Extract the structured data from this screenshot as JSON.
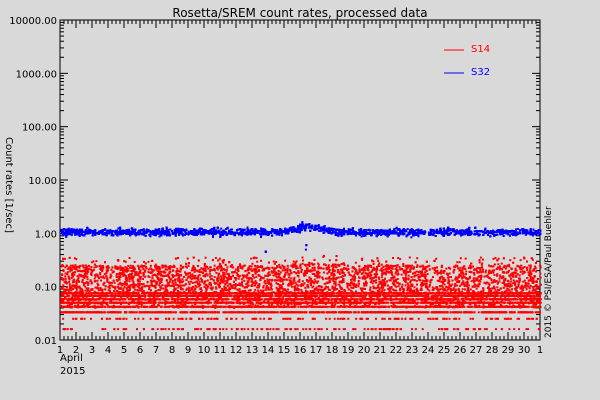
{
  "chart_data": {
    "type": "scatter",
    "title": "Rosetta/SREM count rates, processed data",
    "ylabel": "Count rates [1/sec]",
    "xlabel_month": "April",
    "xlabel_year": "2015",
    "y_scale": "log",
    "ylim": [
      0.01,
      10000
    ],
    "y_ticks": [
      {
        "value": 0.01,
        "label": "0.01"
      },
      {
        "value": 0.1,
        "label": "0.10"
      },
      {
        "value": 1,
        "label": "1.00"
      },
      {
        "value": 10,
        "label": "10.00"
      },
      {
        "value": 100,
        "label": "100.00"
      },
      {
        "value": 1000,
        "label": "1000.00"
      },
      {
        "value": 10000,
        "label": "10000.00"
      }
    ],
    "xlim": [
      1,
      31
    ],
    "x_ticks": [
      "1",
      "2",
      "3",
      "4",
      "5",
      "6",
      "7",
      "8",
      "9",
      "10",
      "11",
      "12",
      "13",
      "14",
      "15",
      "16",
      "17",
      "18",
      "19",
      "20",
      "21",
      "22",
      "23",
      "24",
      "25",
      "26",
      "27",
      "28",
      "29",
      "30",
      "1"
    ],
    "grid": false,
    "legend_position": "top-right",
    "series": [
      {
        "name": "S14",
        "color": "#ff0000",
        "typical_range": [
          0.04,
          0.25
        ],
        "discrete_levels": [
          0.016,
          0.025,
          0.033,
          0.042,
          0.05,
          0.058,
          0.067,
          0.075
        ],
        "notes": "noisy band near 0.1 count/s with quantized low levels"
      },
      {
        "name": "S32",
        "color": "#0000ff",
        "typical_range": [
          0.7,
          1.6
        ],
        "median": 1.05,
        "peak": {
          "x": 16.5,
          "y": 1.7
        },
        "notes": "dense band around 1 count/s, slight rise near April 16-17"
      }
    ],
    "credit": "2015 © PSI/ESA/Paul Buehler"
  }
}
